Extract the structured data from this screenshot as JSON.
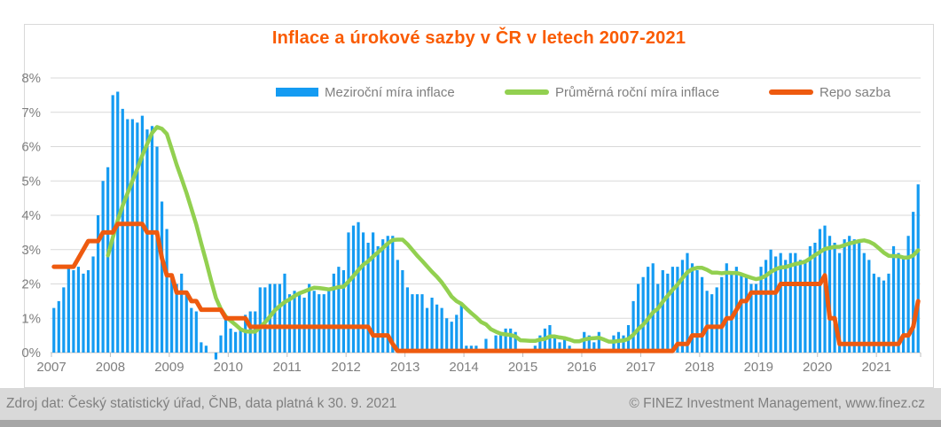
{
  "title": "Inflace a úrokové sazby v ČR v letech 2007-2021",
  "title_color": "#FA5B00",
  "footer": {
    "left": "Zdroj dat: Český statistický úřad, ČNB, data platná k 30. 9. 2021",
    "right": "© FINEZ Investment Management, www.finez.cz"
  },
  "legend": [
    {
      "label": "Meziroční míra inflace",
      "marker": "bar",
      "color": "#149BF2"
    },
    {
      "label": "Průměrná roční míra inflace",
      "marker": "line",
      "color": "#92D050"
    },
    {
      "label": "Repo sazba",
      "marker": "line",
      "color": "#EE5A0F"
    }
  ],
  "colors": {
    "grid": "#D9D9D9",
    "axis": "#BFBFBF",
    "tick_label": "#7F7F7F",
    "chart_border": "#D9D9D9",
    "footer_band": "#D9D9D9",
    "footer_text": "#808080",
    "bottom_strip": "#A6A6A6"
  },
  "chart_data": {
    "type": "bar",
    "combo": "monthly bars + two lines",
    "x_unit": "month",
    "x_start": "2007-01",
    "x_end": "2021-09",
    "months_total": 177,
    "x_tick_labels": [
      "2007",
      "2008",
      "2009",
      "2010",
      "2011",
      "2012",
      "2013",
      "2014",
      "2015",
      "2016",
      "2017",
      "2018",
      "2019",
      "2020",
      "2021"
    ],
    "y_tick_labels": [
      "0%",
      "1%",
      "2%",
      "3%",
      "4%",
      "5%",
      "6%",
      "7%",
      "8%"
    ],
    "ylim": [
      0,
      8
    ],
    "grid": true,
    "legend_position": "top",
    "series": [
      {
        "name": "Meziroční míra inflace",
        "type": "bar",
        "color": "#149BF2",
        "unit": "%",
        "start_month_index": 0,
        "values": [
          1.3,
          1.5,
          1.9,
          2.5,
          2.4,
          2.5,
          2.3,
          2.4,
          2.8,
          4.0,
          5.0,
          5.4,
          7.5,
          7.6,
          7.1,
          6.8,
          6.8,
          6.7,
          6.9,
          6.5,
          6.6,
          6.0,
          4.4,
          3.6,
          2.2,
          2.0,
          2.3,
          1.8,
          1.3,
          1.2,
          0.3,
          0.2,
          0.0,
          -0.2,
          0.5,
          1.0,
          0.7,
          0.6,
          0.7,
          1.1,
          1.2,
          1.2,
          1.9,
          1.9,
          2.0,
          2.0,
          2.0,
          2.3,
          1.7,
          1.8,
          1.7,
          1.6,
          2.0,
          1.8,
          1.7,
          1.7,
          1.8,
          2.3,
          2.5,
          2.4,
          3.5,
          3.7,
          3.8,
          3.5,
          3.2,
          3.5,
          3.1,
          3.3,
          3.4,
          3.4,
          2.7,
          2.4,
          1.9,
          1.7,
          1.7,
          1.7,
          1.3,
          1.6,
          1.4,
          1.3,
          1.0,
          0.9,
          1.1,
          1.4,
          0.2,
          0.2,
          0.2,
          0.1,
          0.4,
          0.0,
          0.5,
          0.6,
          0.7,
          0.7,
          0.6,
          0.1,
          0.1,
          0.1,
          0.2,
          0.5,
          0.7,
          0.8,
          0.5,
          0.3,
          0.4,
          0.2,
          0.1,
          0.1,
          0.6,
          0.5,
          0.3,
          0.6,
          0.1,
          0.1,
          0.5,
          0.6,
          0.5,
          0.8,
          1.5,
          2.0,
          2.2,
          2.5,
          2.6,
          2.0,
          2.4,
          2.3,
          2.5,
          2.5,
          2.7,
          2.9,
          2.6,
          2.4,
          2.2,
          1.8,
          1.7,
          1.9,
          2.2,
          2.6,
          2.3,
          2.5,
          2.3,
          2.2,
          2.0,
          2.0,
          2.5,
          2.7,
          3.0,
          2.8,
          2.9,
          2.7,
          2.9,
          2.9,
          2.7,
          2.7,
          3.1,
          3.2,
          3.6,
          3.7,
          3.4,
          3.2,
          2.9,
          3.3,
          3.4,
          3.3,
          3.2,
          2.9,
          2.7,
          2.3,
          2.2,
          2.1,
          2.3,
          3.1,
          2.9,
          2.8,
          3.4,
          4.1,
          4.9
        ]
      },
      {
        "name": "Průměrná roční míra inflace",
        "type": "line",
        "color": "#92D050",
        "unit": "%",
        "start_month_index": 11,
        "values": [
          2.83,
          3.35,
          3.85,
          4.28,
          4.64,
          5.01,
          5.36,
          5.74,
          6.08,
          6.4,
          6.57,
          6.52,
          6.37,
          5.93,
          5.47,
          5.07,
          4.65,
          4.19,
          3.73,
          3.18,
          2.66,
          2.11,
          1.59,
          1.27,
          1.05,
          0.93,
          0.81,
          0.68,
          0.62,
          0.61,
          0.61,
          0.74,
          0.88,
          1.05,
          1.23,
          1.36,
          1.47,
          1.55,
          1.65,
          1.73,
          1.78,
          1.84,
          1.89,
          1.88,
          1.86,
          1.84,
          1.87,
          1.91,
          1.92,
          2.07,
          2.23,
          2.4,
          2.56,
          2.66,
          2.8,
          2.92,
          3.05,
          3.18,
          3.28,
          3.29,
          3.29,
          3.16,
          2.99,
          2.82,
          2.67,
          2.51,
          2.35,
          2.21,
          2.04,
          1.84,
          1.63,
          1.5,
          1.42,
          1.28,
          1.15,
          1.03,
          0.89,
          0.82,
          0.68,
          0.61,
          0.55,
          0.53,
          0.51,
          0.47,
          0.36,
          0.35,
          0.34,
          0.34,
          0.38,
          0.4,
          0.47,
          0.47,
          0.44,
          0.42,
          0.38,
          0.33,
          0.33,
          0.38,
          0.41,
          0.42,
          0.43,
          0.38,
          0.32,
          0.32,
          0.34,
          0.35,
          0.4,
          0.52,
          0.68,
          0.81,
          0.98,
          1.17,
          1.28,
          1.48,
          1.66,
          1.83,
          1.98,
          2.17,
          2.34,
          2.43,
          2.47,
          2.47,
          2.41,
          2.33,
          2.33,
          2.31,
          2.33,
          2.32,
          2.32,
          2.28,
          2.23,
          2.18,
          2.14,
          2.17,
          2.24,
          2.35,
          2.43,
          2.48,
          2.49,
          2.54,
          2.58,
          2.61,
          2.65,
          2.74,
          2.84,
          2.93,
          3.02,
          3.05,
          3.08,
          3.08,
          3.13,
          3.18,
          3.21,
          3.25,
          3.27,
          3.23,
          3.16,
          3.04,
          2.91,
          2.82,
          2.81,
          2.81,
          2.77,
          2.77,
          2.83,
          2.98
        ]
      },
      {
        "name": "Repo sazba",
        "type": "line",
        "color": "#EE5A0F",
        "unit": "%",
        "start_month_index": 0,
        "values": [
          2.5,
          2.5,
          2.5,
          2.5,
          2.5,
          2.75,
          3.0,
          3.25,
          3.25,
          3.25,
          3.5,
          3.5,
          3.5,
          3.75,
          3.75,
          3.75,
          3.75,
          3.75,
          3.75,
          3.5,
          3.5,
          3.5,
          2.75,
          2.25,
          2.25,
          1.75,
          1.75,
          1.75,
          1.5,
          1.5,
          1.25,
          1.25,
          1.25,
          1.25,
          1.25,
          1.0,
          1.0,
          1.0,
          1.0,
          1.0,
          0.75,
          0.75,
          0.75,
          0.75,
          0.75,
          0.75,
          0.75,
          0.75,
          0.75,
          0.75,
          0.75,
          0.75,
          0.75,
          0.75,
          0.75,
          0.75,
          0.75,
          0.75,
          0.75,
          0.75,
          0.75,
          0.75,
          0.75,
          0.75,
          0.75,
          0.5,
          0.5,
          0.5,
          0.5,
          0.25,
          0.05,
          0.05,
          0.05,
          0.05,
          0.05,
          0.05,
          0.05,
          0.05,
          0.05,
          0.05,
          0.05,
          0.05,
          0.05,
          0.05,
          0.05,
          0.05,
          0.05,
          0.05,
          0.05,
          0.05,
          0.05,
          0.05,
          0.05,
          0.05,
          0.05,
          0.05,
          0.05,
          0.05,
          0.05,
          0.05,
          0.05,
          0.05,
          0.05,
          0.05,
          0.05,
          0.05,
          0.05,
          0.05,
          0.05,
          0.05,
          0.05,
          0.05,
          0.05,
          0.05,
          0.05,
          0.05,
          0.05,
          0.05,
          0.05,
          0.05,
          0.05,
          0.05,
          0.05,
          0.05,
          0.05,
          0.05,
          0.05,
          0.25,
          0.25,
          0.25,
          0.5,
          0.5,
          0.5,
          0.75,
          0.75,
          0.75,
          0.75,
          1.0,
          1.0,
          1.25,
          1.5,
          1.5,
          1.75,
          1.75,
          1.75,
          1.75,
          1.75,
          1.75,
          2.0,
          2.0,
          2.0,
          2.0,
          2.0,
          2.0,
          2.0,
          2.0,
          2.0,
          2.25,
          1.0,
          1.0,
          0.25,
          0.25,
          0.25,
          0.25,
          0.25,
          0.25,
          0.25,
          0.25,
          0.25,
          0.25,
          0.25,
          0.25,
          0.25,
          0.5,
          0.5,
          0.75,
          1.5
        ]
      }
    ]
  }
}
